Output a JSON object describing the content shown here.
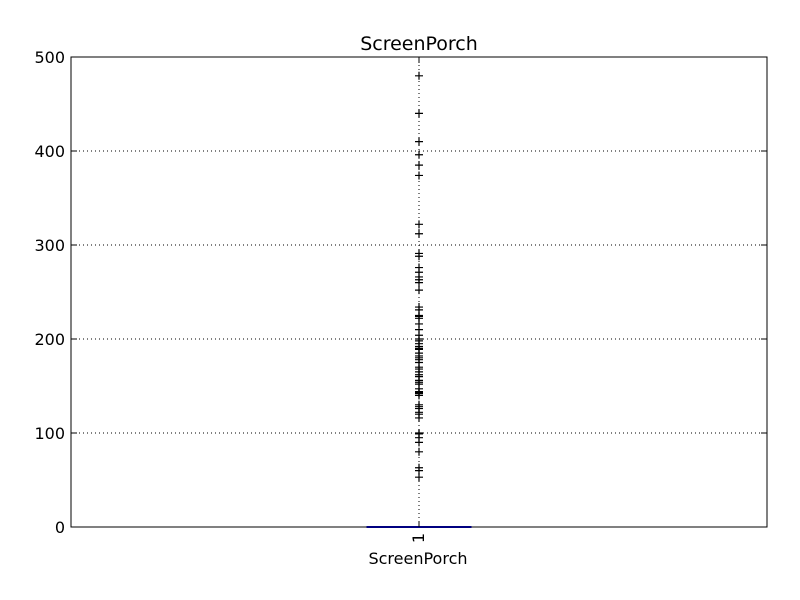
{
  "chart_data": {
    "type": "box",
    "title": "ScreenPorch",
    "xlabel": "ScreenPorch",
    "ylabel": "",
    "categories": [
      "1"
    ],
    "ylim": [
      0,
      500
    ],
    "yticks": [
      0,
      100,
      200,
      300,
      400,
      500
    ],
    "grid": true,
    "box": {
      "min": 0,
      "q1": 0,
      "median": 0,
      "q3": 0,
      "max": 0
    },
    "outliers": [
      480,
      440,
      410,
      396,
      385,
      374,
      322,
      312,
      291,
      288,
      276,
      271,
      266,
      263,
      260,
      252,
      234,
      231,
      225,
      224,
      222,
      216,
      210,
      204,
      200,
      198,
      195,
      192,
      190,
      189,
      185,
      182,
      180,
      178,
      175,
      170,
      168,
      165,
      162,
      160,
      156,
      154,
      152,
      147,
      144,
      143,
      142,
      140,
      130,
      128,
      126,
      122,
      120,
      116,
      100,
      99,
      95,
      90,
      80,
      63,
      60,
      53
    ],
    "colors": {
      "box": "#0000ff",
      "median": "#ff0000",
      "flier": "#000000",
      "grid": "#000000"
    }
  }
}
